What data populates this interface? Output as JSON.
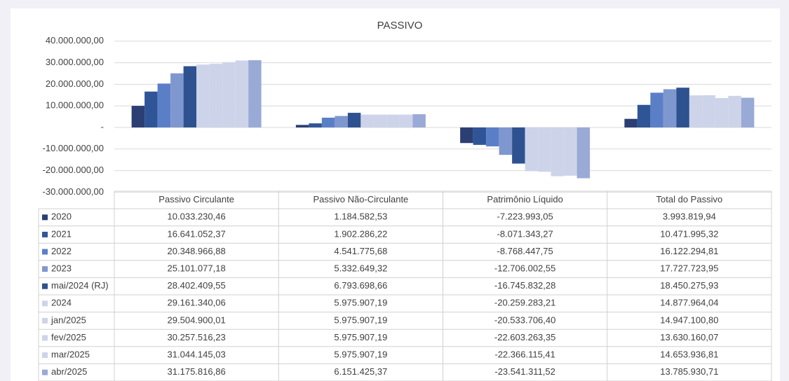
{
  "chart_data": {
    "type": "bar",
    "title": "PASSIVO",
    "categories": [
      "Passivo Circulante",
      "Passivo Não-Circulante",
      "Patrimônio Líquido",
      "Total do Passivo"
    ],
    "ylim": [
      -30000000,
      40000000
    ],
    "yticks": [
      {
        "value": -30000000,
        "label": "-30.000.000,00"
      },
      {
        "value": -20000000,
        "label": "-20.000.000,00"
      },
      {
        "value": -10000000,
        "label": "-10.000.000,00"
      },
      {
        "value": 0,
        "label": "-"
      },
      {
        "value": 10000000,
        "label": "10.000.000,00"
      },
      {
        "value": 20000000,
        "label": "20.000.000,00"
      },
      {
        "value": 30000000,
        "label": "30.000.000,00"
      },
      {
        "value": 40000000,
        "label": "40.000.000,00"
      }
    ],
    "grid": true,
    "series": [
      {
        "name": "2020",
        "color": "#2b3f73",
        "values": [
          10033230.46,
          1184582.53,
          -7223993.05,
          3993819.94
        ],
        "value_labels": [
          "10.033.230,46",
          "1.184.582,53",
          "-7.223.993,05",
          "3.993.819,94"
        ]
      },
      {
        "name": "2021",
        "color": "#2f5597",
        "values": [
          16641052.37,
          1902286.22,
          -8071343.27,
          10471995.32
        ],
        "value_labels": [
          "16.641.052,37",
          "1.902.286,22",
          "-8.071.343,27",
          "10.471.995,32"
        ]
      },
      {
        "name": "2022",
        "color": "#5b7fc7",
        "values": [
          20348966.88,
          4541775.68,
          -8768447.75,
          16122294.81
        ],
        "value_labels": [
          "20.348.966,88",
          "4.541.775,68",
          "-8.768.447,75",
          "16.122.294,81"
        ]
      },
      {
        "name": "2023",
        "color": "#7f97cf",
        "values": [
          25101077.18,
          5332649.32,
          -12706002.55,
          17727723.95
        ],
        "value_labels": [
          "25.101.077,18",
          "5.332.649,32",
          "-12.706.002,55",
          "17.727.723,95"
        ]
      },
      {
        "name": "mai/2024 (RJ)",
        "color": "#2e5290",
        "values": [
          28402409.55,
          6793698.66,
          -16745832.28,
          18450275.93
        ],
        "value_labels": [
          "28.402.409,55",
          "6.793.698,66",
          "-16.745.832,28",
          "18.450.275,93"
        ]
      },
      {
        "name": "2024",
        "color": "#cdd4ea",
        "values": [
          29161340.06,
          5975907.19,
          -20259283.21,
          14877964.04
        ],
        "value_labels": [
          "29.161.340,06",
          "5.975.907,19",
          "-20.259.283,21",
          "14.877.964,04"
        ]
      },
      {
        "name": "jan/2025",
        "color": "#cdd4ea",
        "values": [
          29504900.01,
          5975907.19,
          -20533706.4,
          14947100.8
        ],
        "value_labels": [
          "29.504.900,01",
          "5.975.907,19",
          "-20.533.706,40",
          "14.947.100,80"
        ]
      },
      {
        "name": "fev/2025",
        "color": "#cdd4ea",
        "values": [
          30257516.23,
          5975907.19,
          -22603263.35,
          13630160.07
        ],
        "value_labels": [
          "30.257.516,23",
          "5.975.907,19",
          "-22.603.263,35",
          "13.630.160,07"
        ]
      },
      {
        "name": "mar/2025",
        "color": "#cdd4ea",
        "values": [
          31044145.03,
          5975907.19,
          -22366115.41,
          14653936.81
        ],
        "value_labels": [
          "31.044.145,03",
          "5.975.907,19",
          "-22.366.115,41",
          "14.653.936,81"
        ]
      },
      {
        "name": "abr/2025",
        "color": "#9aaad6",
        "values": [
          31175816.86,
          6151425.37,
          -23541311.52,
          13785930.71
        ],
        "value_labels": [
          "31.175.816,86",
          "6.151.425,37",
          "-23.541.311,52",
          "13.785.930,71"
        ]
      }
    ]
  }
}
